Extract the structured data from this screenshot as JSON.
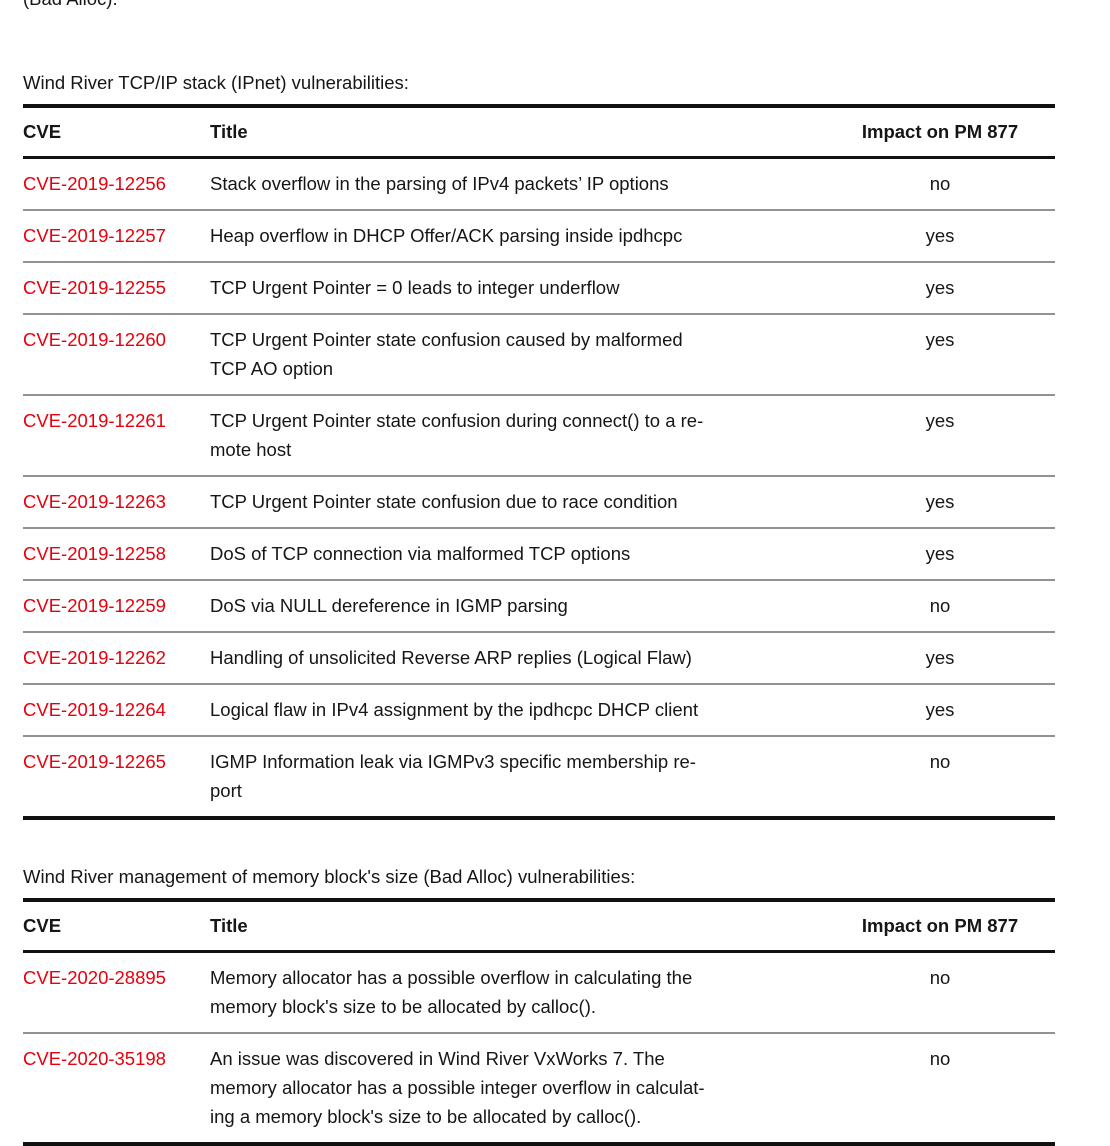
{
  "top_fragment": "(Bad Alloc).",
  "colors": {
    "cve_link_red": "#e8000d",
    "row_divider_gray": "#919191",
    "table_border_black": "#111111"
  },
  "sections": [
    {
      "heading": "Wind River TCP/IP stack (IPnet) vulnerabilities:",
      "columns": [
        "CVE",
        "Title",
        "Impact on PM 877"
      ],
      "rows": [
        {
          "cve": "CVE-2019-12256",
          "title": "Stack overflow in the parsing of IPv4 packets’ IP options",
          "impact": "no"
        },
        {
          "cve": "CVE-2019-12257",
          "title": "Heap overflow in DHCP Offer/ACK parsing inside ipdhcpc",
          "impact": "yes"
        },
        {
          "cve": "CVE-2019-12255",
          "title": "TCP Urgent Pointer = 0 leads to integer underflow",
          "impact": "yes"
        },
        {
          "cve": "CVE-2019-12260",
          "title": "TCP Urgent Pointer state confusion caused by malformed\nTCP AO option",
          "impact": "yes"
        },
        {
          "cve": "CVE-2019-12261",
          "title": "TCP Urgent Pointer state confusion during connect() to a re-\nmote host",
          "impact": "yes"
        },
        {
          "cve": "CVE-2019-12263",
          "title": "TCP Urgent Pointer state confusion due to race condition",
          "impact": "yes"
        },
        {
          "cve": "CVE-2019-12258",
          "title": "DoS of TCP connection via malformed TCP options",
          "impact": "yes"
        },
        {
          "cve": "CVE-2019-12259",
          "title": "DoS via NULL dereference in IGMP parsing",
          "impact": "no"
        },
        {
          "cve": "CVE-2019-12262",
          "title": "Handling of unsolicited Reverse ARP replies (Logical Flaw)",
          "impact": "yes"
        },
        {
          "cve": "CVE-2019-12264",
          "title": "Logical flaw in IPv4 assignment by the ipdhcpc DHCP client",
          "impact": "yes"
        },
        {
          "cve": "CVE-2019-12265",
          "title": "IGMP Information leak via IGMPv3 specific membership re-\nport",
          "impact": "no"
        }
      ]
    },
    {
      "heading": "Wind River management of memory block's size (Bad Alloc) vulnerabilities:",
      "columns": [
        "CVE",
        "Title",
        "Impact on PM 877"
      ],
      "rows": [
        {
          "cve": "CVE-2020-28895",
          "title": "Memory allocator has a possible overflow in calculating the\nmemory block's size to be allocated by calloc().",
          "impact": "no"
        },
        {
          "cve": "CVE-2020-35198",
          "title": "An issue was discovered in Wind River VxWorks 7. The\nmemory allocator has a possible integer overflow in calculat-\ning a memory block's size to be allocated by calloc().",
          "impact": "no"
        }
      ]
    }
  ]
}
